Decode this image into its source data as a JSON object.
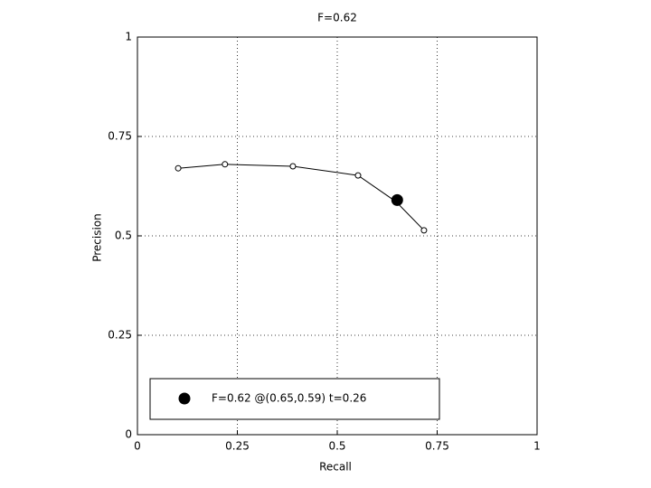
{
  "chart_data": {
    "type": "line",
    "title": "F=0.62",
    "x_label": "Recall",
    "y_label": "Precision",
    "xlim": [
      0,
      1
    ],
    "ylim": [
      0,
      1
    ],
    "xticks": [
      0,
      0.25,
      0.5,
      0.75,
      1
    ],
    "yticks": [
      0,
      0.25,
      0.5,
      0.75,
      1
    ],
    "grid": true,
    "legend": "lower left",
    "series": [
      {
        "color": "#000000",
        "marker": "open-circle",
        "line": true,
        "x": [
          0.102,
          0.219,
          0.389,
          0.552,
          0.647,
          0.717
        ],
        "values": [
          0.67,
          0.68,
          0.675,
          0.652,
          0.586,
          0.514
        ]
      },
      {
        "name": "F=0.62 @(0.65,0.59) t=0.26",
        "color": "#000000",
        "marker": "filled-circle",
        "line": false,
        "x": [
          0.65
        ],
        "values": [
          0.59
        ]
      }
    ]
  }
}
